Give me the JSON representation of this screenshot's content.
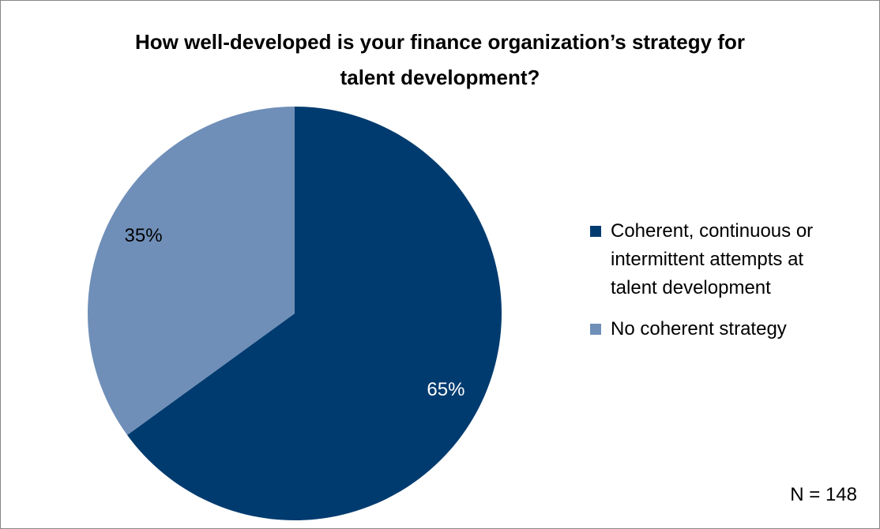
{
  "chart_data": {
    "type": "pie",
    "title": "How well-developed is your finance organization’s strategy for talent development?",
    "categories": [
      "Coherent, continuous or intermittent attempts at talent development",
      "No coherent strategy"
    ],
    "values": [
      65,
      35
    ],
    "value_labels": [
      "65%",
      "35%"
    ],
    "colors": [
      "#003b6f",
      "#6f8fb8"
    ],
    "label_colors": [
      "#ffffff",
      "#000000"
    ],
    "annotation": "N = 148",
    "legend": "right"
  }
}
